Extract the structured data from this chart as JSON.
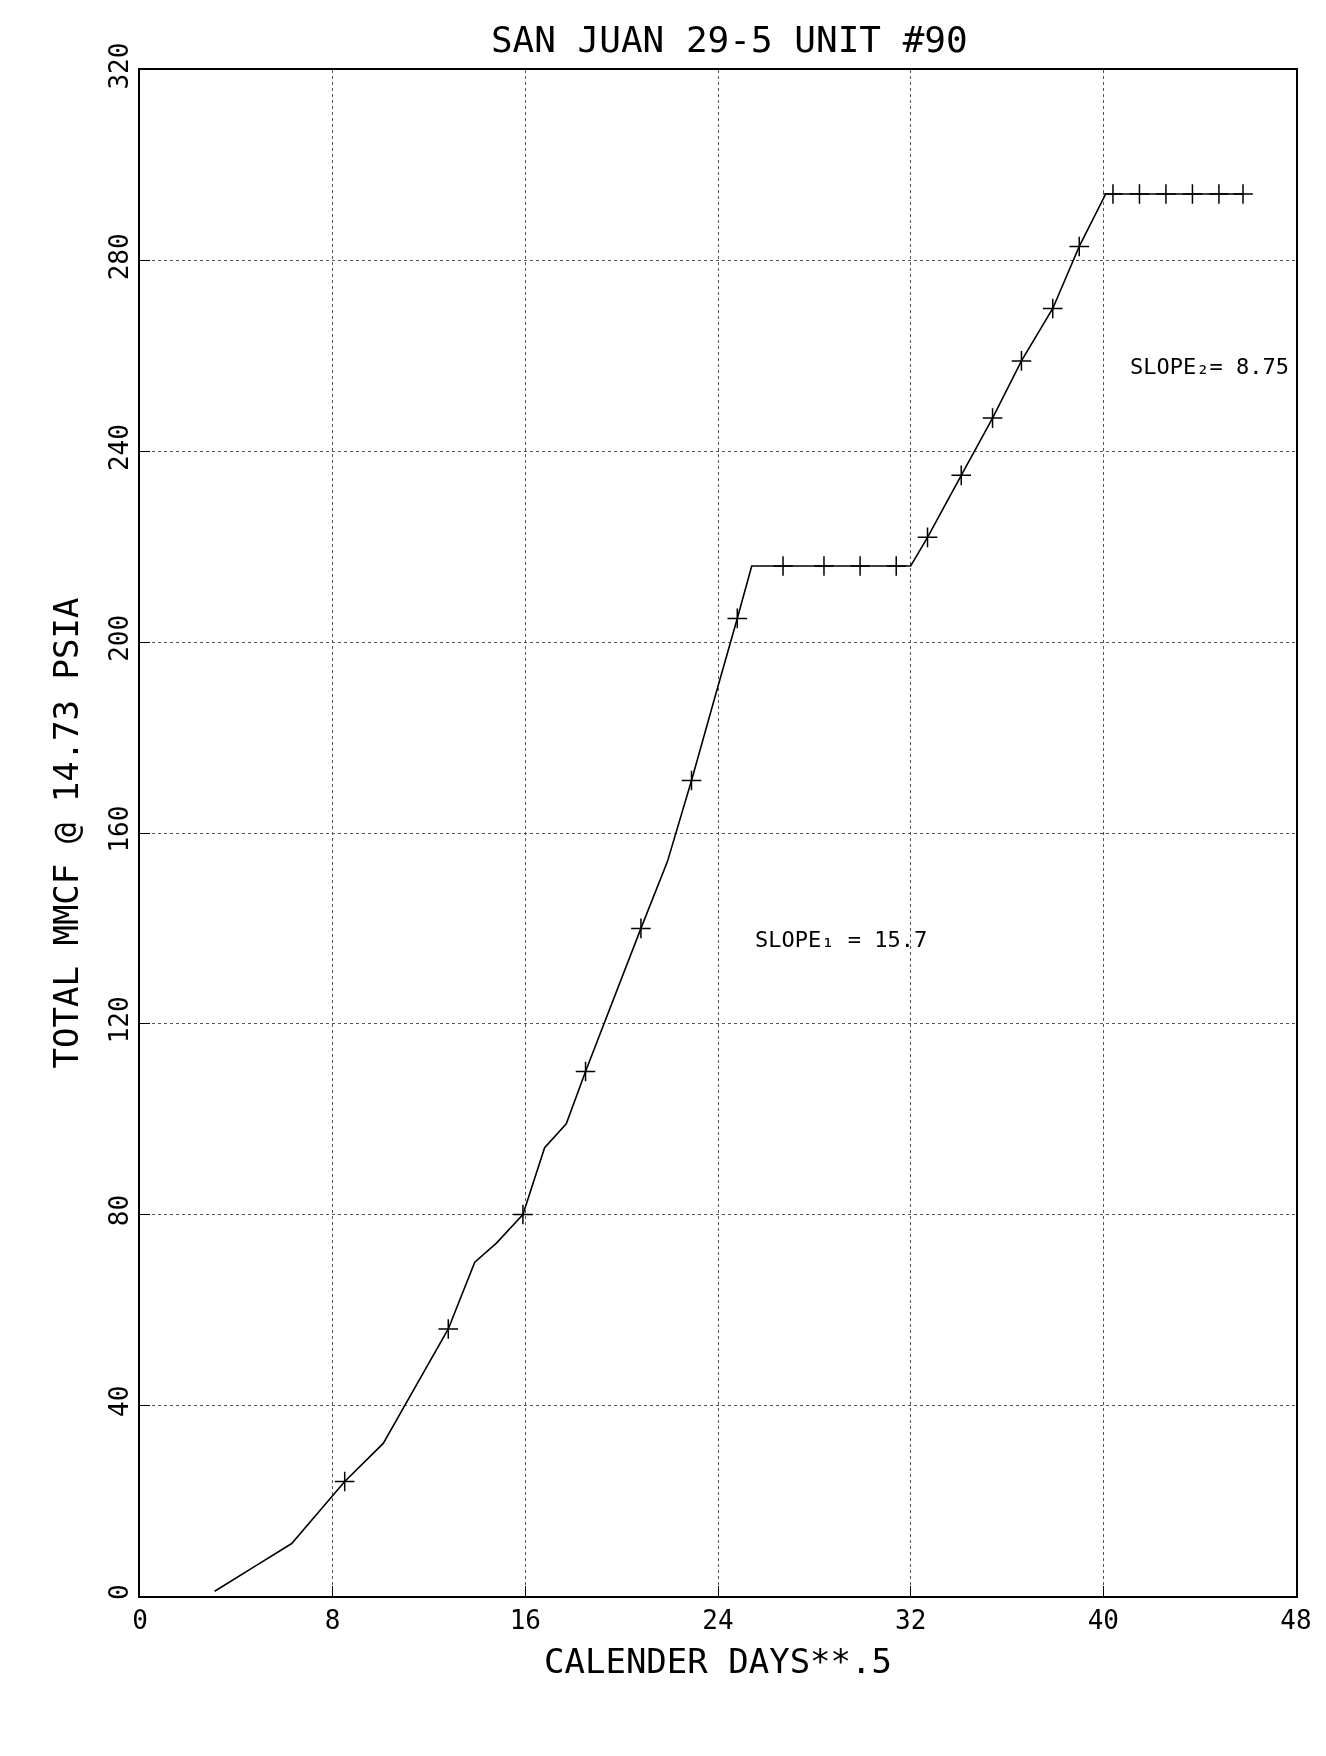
{
  "chart_data": {
    "type": "line",
    "title": "SAN JUAN 29-5 UNIT #90",
    "xlabel": "CALENDER DAYS**.5",
    "ylabel": "TOTAL MMCF @ 14.73 PSIA",
    "xlim": [
      0,
      48
    ],
    "xticks": [
      0,
      8,
      16,
      24,
      32,
      40,
      48
    ],
    "ylim": [
      0,
      320
    ],
    "yticks": [
      0,
      40,
      80,
      120,
      160,
      200,
      240,
      280,
      320
    ],
    "grid": true,
    "series": [
      {
        "color": "#000000",
        "marker": "none",
        "x": [
          3.1,
          6.3,
          8.5,
          10.1,
          12.8,
          13.9,
          14.8,
          15.9,
          16.8,
          17.7,
          18.5,
          20.8,
          21.9,
          22.9,
          23.9,
          24.8,
          25.4,
          32.0,
          32.7,
          34.1,
          35.4,
          36.6,
          37.9,
          39.0,
          40.1,
          45.8
        ],
        "values": [
          1,
          11,
          24,
          32,
          56,
          70,
          74,
          80,
          94,
          99,
          110,
          140,
          154,
          171,
          189,
          205,
          216,
          216,
          222,
          235,
          247,
          259,
          270,
          283,
          294,
          294
        ]
      },
      {
        "type": "scatter",
        "color": "#000000",
        "marker": "cross",
        "x": [
          8.5,
          12.8,
          15.9,
          18.5,
          20.8,
          22.9,
          24.8,
          26.7,
          28.4,
          29.9,
          31.4,
          32.7,
          34.1,
          35.4,
          36.6,
          37.9,
          39.0,
          40.4,
          41.5,
          42.6,
          43.7,
          44.8,
          45.8
        ],
        "values": [
          24,
          56,
          80,
          110,
          140,
          171,
          205,
          216,
          216,
          216,
          216,
          222,
          235,
          247,
          259,
          270,
          283,
          294,
          294,
          294,
          294,
          294,
          294
        ]
      }
    ],
    "annotations": [
      "SLOPE₁ = 15.7",
      "SLOPE₂= 8.75"
    ]
  }
}
